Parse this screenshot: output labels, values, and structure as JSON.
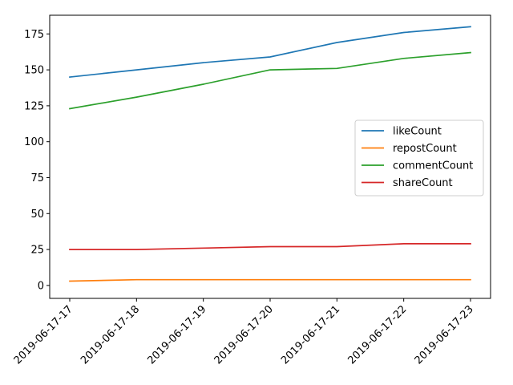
{
  "chart_data": {
    "type": "line",
    "title": "",
    "xlabel": "",
    "ylabel": "",
    "categories": [
      "2019-06-17-17",
      "2019-06-17-18",
      "2019-06-17-19",
      "2019-06-17-20",
      "2019-06-17-21",
      "2019-06-17-22",
      "2019-06-17-23"
    ],
    "ylim": [
      -9,
      188
    ],
    "yticks": [
      0,
      25,
      50,
      75,
      100,
      125,
      150,
      175
    ],
    "grid": false,
    "legend_position": "center-right",
    "series": [
      {
        "name": "likeCount",
        "color": "#1f77b4",
        "values": [
          145,
          150,
          155,
          159,
          169,
          176,
          180
        ]
      },
      {
        "name": "repostCount",
        "color": "#ff7f0e",
        "values": [
          3,
          4,
          4,
          4,
          4,
          4,
          4
        ]
      },
      {
        "name": "commentCount",
        "color": "#2ca02c",
        "values": [
          123,
          131,
          140,
          150,
          151,
          158,
          162
        ]
      },
      {
        "name": "shareCount",
        "color": "#d62728",
        "values": [
          25,
          25,
          26,
          27,
          27,
          29,
          29
        ]
      }
    ]
  }
}
